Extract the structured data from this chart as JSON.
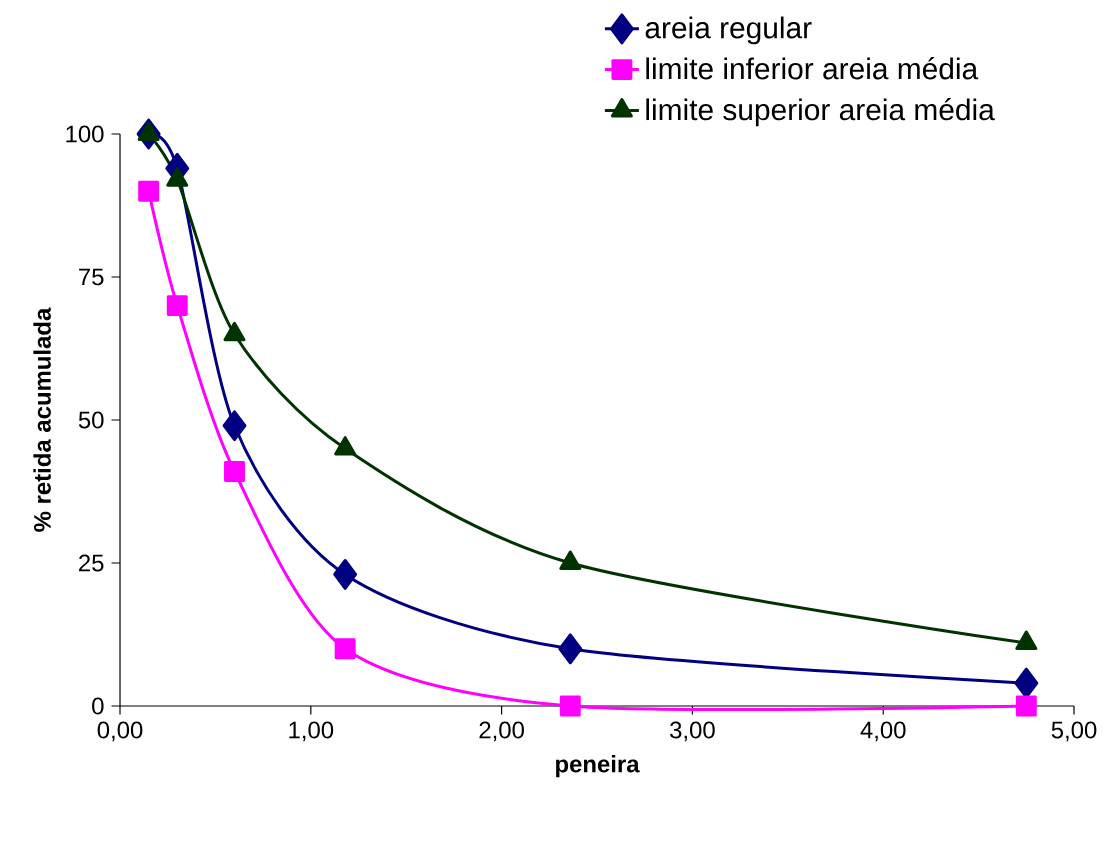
{
  "chart_data": {
    "type": "line",
    "xlabel": "peneira",
    "ylabel": "% retida acumulada",
    "x": [
      0.15,
      0.3,
      0.6,
      1.18,
      2.36,
      4.75
    ],
    "series": [
      {
        "name": "areia regular",
        "color": "#000080",
        "marker": "diamond",
        "values": [
          100,
          94,
          49,
          23,
          10,
          4
        ]
      },
      {
        "name": "limite inferior areia média",
        "color": "#ff00ff",
        "marker": "square",
        "values": [
          90,
          70,
          41,
          10,
          0,
          0
        ]
      },
      {
        "name": "limite superior areia média",
        "color": "#003300",
        "marker": "triangle",
        "values": [
          100,
          92,
          65,
          45,
          25,
          11
        ]
      }
    ],
    "xlim": [
      0,
      5
    ],
    "ylim": [
      0,
      100
    ],
    "xticks": [
      {
        "value": 0,
        "label": "0,00"
      },
      {
        "value": 1,
        "label": "1,00"
      },
      {
        "value": 2,
        "label": "2,00"
      },
      {
        "value": 3,
        "label": "3,00"
      },
      {
        "value": 4,
        "label": "4,00"
      },
      {
        "value": 5,
        "label": "5,00"
      }
    ],
    "yticks": [
      0,
      25,
      50,
      75,
      100
    ],
    "legend": "top right",
    "grid": false
  }
}
